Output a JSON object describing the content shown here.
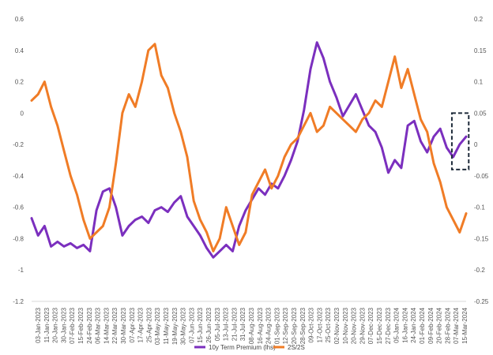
{
  "chart_data": {
    "type": "line",
    "title": "",
    "xlabel": "",
    "ylabel": "",
    "grid": false,
    "legend_position": "bottom",
    "x_tick_labels": [
      "03-Jan-2023",
      "11-Jan-2023",
      "20-Jan-2023",
      "30-Jan-2023",
      "07-Feb-2023",
      "15-Feb-2023",
      "24-Feb-2023",
      "06-Mar-2023",
      "14-Mar-2023",
      "22-Mar-2023",
      "30-Mar-2023",
      "07-Apr-2023",
      "17-Apr-2023",
      "25-Apr-2023",
      "03-May-2023",
      "11-May-2023",
      "19-May-2023",
      "30-May-2023",
      "07-Jun-2023",
      "15-Jun-2023",
      "26-Jun-2023",
      "05-Jul-2023",
      "13-Jul-2023",
      "21-Jul-2023",
      "31-Jul-2023",
      "08-Aug-2023",
      "16-Aug-2023",
      "24-Aug-2023",
      "01-Sep-2023",
      "12-Sep-2023",
      "20-Sep-2023",
      "28-Sep-2023",
      "09-Oct-2023",
      "17-Oct-2023",
      "25-Oct-2023",
      "02-Nov-2023",
      "10-Nov-2023",
      "20-Nov-2023",
      "29-Nov-2023",
      "07-Dec-2023",
      "15-Dec-2023",
      "27-Dec-2023",
      "05-Jan-2024",
      "16-Jan-2024",
      "24-Jan-2024",
      "01-Feb-2024",
      "09-Feb-2024",
      "20-Feb-2024",
      "28-Feb-2024",
      "07-Mar-2024",
      "15-Mar-2024"
    ],
    "y_left": {
      "range": [
        -1.2,
        0.6
      ],
      "ticks": [
        "0.6",
        "0.4",
        "0.2",
        "0",
        "-0.2",
        "-0.4",
        "-0.6",
        "-0.8",
        "-1",
        "-1.2"
      ]
    },
    "y_right": {
      "range": [
        -0.25,
        0.2
      ],
      "ticks": [
        "0.2",
        "0.15",
        "0.1",
        "0.05",
        "0",
        "-0.05",
        "-0.1",
        "-0.15",
        "-0.2",
        "-0.25"
      ]
    },
    "series": [
      {
        "name": "10y Term Premium (lhs)",
        "axis": "left",
        "color": "#7b2fbe",
        "points": [
          [
            0,
            -0.67
          ],
          [
            1,
            -0.78
          ],
          [
            2,
            -0.72
          ],
          [
            3,
            -0.85
          ],
          [
            4,
            -0.82
          ],
          [
            5,
            -0.85
          ],
          [
            6,
            -0.83
          ],
          [
            7,
            -0.86
          ],
          [
            8,
            -0.84
          ],
          [
            9,
            -0.88
          ],
          [
            10,
            -0.62
          ],
          [
            11,
            -0.5
          ],
          [
            12,
            -0.48
          ],
          [
            13,
            -0.6
          ],
          [
            14,
            -0.78
          ],
          [
            15,
            -0.72
          ],
          [
            16,
            -0.68
          ],
          [
            17,
            -0.66
          ],
          [
            18,
            -0.7
          ],
          [
            19,
            -0.62
          ],
          [
            20,
            -0.6
          ],
          [
            21,
            -0.63
          ],
          [
            22,
            -0.57
          ],
          [
            23,
            -0.53
          ],
          [
            24,
            -0.66
          ],
          [
            25,
            -0.72
          ],
          [
            26,
            -0.78
          ],
          [
            27,
            -0.86
          ],
          [
            28,
            -0.92
          ],
          [
            29,
            -0.88
          ],
          [
            30,
            -0.84
          ],
          [
            31,
            -0.88
          ],
          [
            32,
            -0.72
          ],
          [
            33,
            -0.62
          ],
          [
            34,
            -0.55
          ],
          [
            35,
            -0.48
          ],
          [
            36,
            -0.52
          ],
          [
            37,
            -0.45
          ],
          [
            38,
            -0.48
          ],
          [
            39,
            -0.4
          ],
          [
            40,
            -0.3
          ],
          [
            41,
            -0.18
          ],
          [
            42,
            0.02
          ],
          [
            43,
            0.28
          ],
          [
            44,
            0.45
          ],
          [
            45,
            0.35
          ],
          [
            46,
            0.2
          ],
          [
            47,
            0.1
          ],
          [
            48,
            -0.02
          ],
          [
            49,
            0.05
          ],
          [
            50,
            0.12
          ],
          [
            51,
            0.02
          ],
          [
            52,
            -0.08
          ],
          [
            53,
            -0.12
          ],
          [
            54,
            -0.22
          ],
          [
            55,
            -0.38
          ],
          [
            56,
            -0.3
          ],
          [
            57,
            -0.35
          ],
          [
            58,
            -0.08
          ],
          [
            59,
            -0.05
          ],
          [
            60,
            -0.18
          ],
          [
            61,
            -0.25
          ],
          [
            62,
            -0.15
          ],
          [
            63,
            -0.1
          ],
          [
            64,
            -0.22
          ],
          [
            65,
            -0.28
          ],
          [
            66,
            -0.2
          ],
          [
            67,
            -0.15
          ]
        ]
      },
      {
        "name": "2S/2S",
        "axis": "right",
        "color": "#f07c26",
        "points": [
          [
            0,
            0.07
          ],
          [
            1,
            0.08
          ],
          [
            2,
            0.1
          ],
          [
            3,
            0.06
          ],
          [
            4,
            0.03
          ],
          [
            5,
            -0.01
          ],
          [
            6,
            -0.05
          ],
          [
            7,
            -0.08
          ],
          [
            8,
            -0.12
          ],
          [
            9,
            -0.15
          ],
          [
            10,
            -0.14
          ],
          [
            11,
            -0.13
          ],
          [
            12,
            -0.1
          ],
          [
            13,
            -0.03
          ],
          [
            14,
            0.05
          ],
          [
            15,
            0.08
          ],
          [
            16,
            0.06
          ],
          [
            17,
            0.1
          ],
          [
            18,
            0.15
          ],
          [
            19,
            0.16
          ],
          [
            20,
            0.11
          ],
          [
            21,
            0.09
          ],
          [
            22,
            0.05
          ],
          [
            23,
            0.02
          ],
          [
            24,
            -0.02
          ],
          [
            25,
            -0.09
          ],
          [
            26,
            -0.12
          ],
          [
            27,
            -0.14
          ],
          [
            28,
            -0.17
          ],
          [
            29,
            -0.15
          ],
          [
            30,
            -0.1
          ],
          [
            31,
            -0.13
          ],
          [
            32,
            -0.16
          ],
          [
            33,
            -0.14
          ],
          [
            34,
            -0.08
          ],
          [
            35,
            -0.06
          ],
          [
            36,
            -0.04
          ],
          [
            37,
            -0.07
          ],
          [
            38,
            -0.05
          ],
          [
            39,
            -0.02
          ],
          [
            40,
            0.0
          ],
          [
            41,
            0.01
          ],
          [
            42,
            0.03
          ],
          [
            43,
            0.05
          ],
          [
            44,
            0.02
          ],
          [
            45,
            0.03
          ],
          [
            46,
            0.06
          ],
          [
            47,
            0.05
          ],
          [
            48,
            0.04
          ],
          [
            49,
            0.03
          ],
          [
            50,
            0.02
          ],
          [
            51,
            0.04
          ],
          [
            52,
            0.05
          ],
          [
            53,
            0.07
          ],
          [
            54,
            0.06
          ],
          [
            55,
            0.1
          ],
          [
            56,
            0.14
          ],
          [
            57,
            0.09
          ],
          [
            58,
            0.12
          ],
          [
            59,
            0.08
          ],
          [
            60,
            0.04
          ],
          [
            61,
            0.02
          ],
          [
            62,
            -0.03
          ],
          [
            63,
            -0.06
          ],
          [
            64,
            -0.1
          ],
          [
            65,
            -0.12
          ],
          [
            66,
            -0.14
          ],
          [
            67,
            -0.11
          ]
        ]
      }
    ],
    "annotations": [
      {
        "type": "dashed-box",
        "axis": "right",
        "x_range": [
          64.8,
          67.4
        ],
        "y_range": [
          -0.04,
          0.05
        ]
      }
    ]
  }
}
